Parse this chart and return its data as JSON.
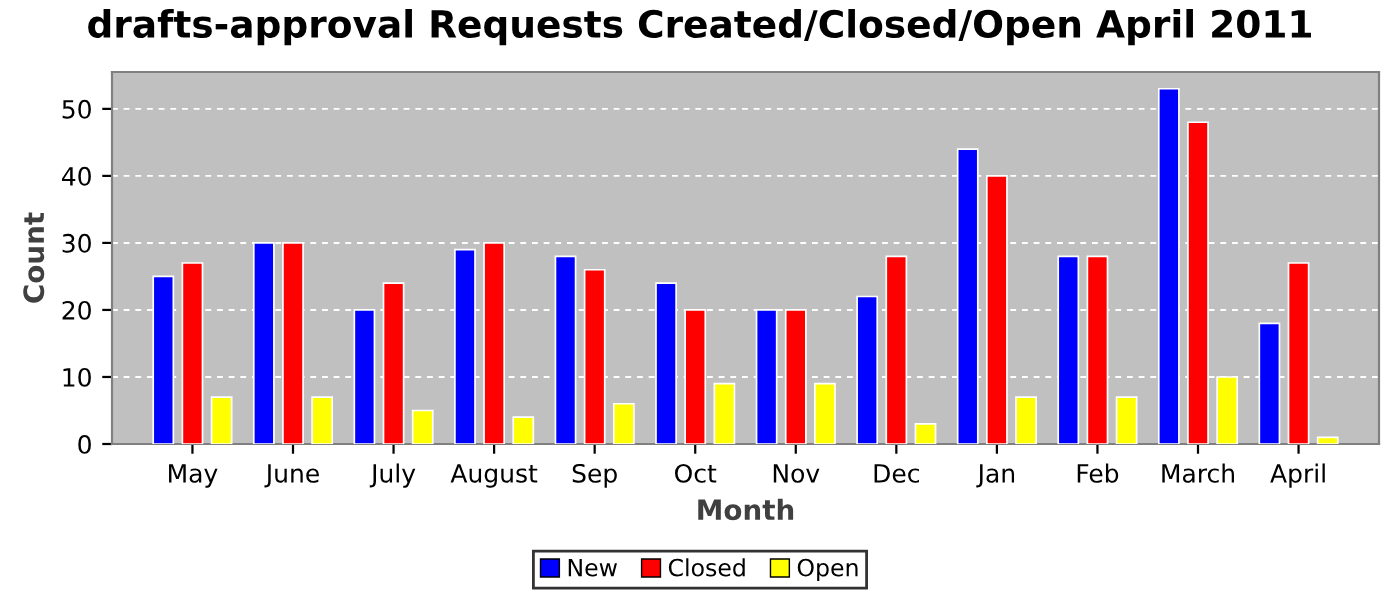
{
  "chart_data": {
    "type": "bar",
    "title": "drafts-approval Requests Created/Closed/Open April 2011",
    "xlabel": "Month",
    "ylabel": "Count",
    "categories": [
      "May",
      "June",
      "July",
      "August",
      "Sep",
      "Oct",
      "Nov",
      "Dec",
      "Jan",
      "Feb",
      "March",
      "April"
    ],
    "series": [
      {
        "name": "New",
        "color": "#0000ff",
        "values": [
          25,
          30,
          20,
          29,
          28,
          24,
          20,
          22,
          44,
          28,
          53,
          18
        ]
      },
      {
        "name": "Closed",
        "color": "#ff0000",
        "values": [
          27,
          30,
          24,
          30,
          26,
          20,
          20,
          28,
          40,
          28,
          48,
          27
        ]
      },
      {
        "name": "Open",
        "color": "#ffff00",
        "values": [
          7,
          7,
          5,
          4,
          6,
          9,
          9,
          3,
          7,
          7,
          10,
          1
        ]
      }
    ],
    "ylim": [
      0,
      55.5
    ],
    "yticks": [
      0,
      10,
      20,
      30,
      40,
      50
    ],
    "grid": "y",
    "legend": "bottom"
  }
}
